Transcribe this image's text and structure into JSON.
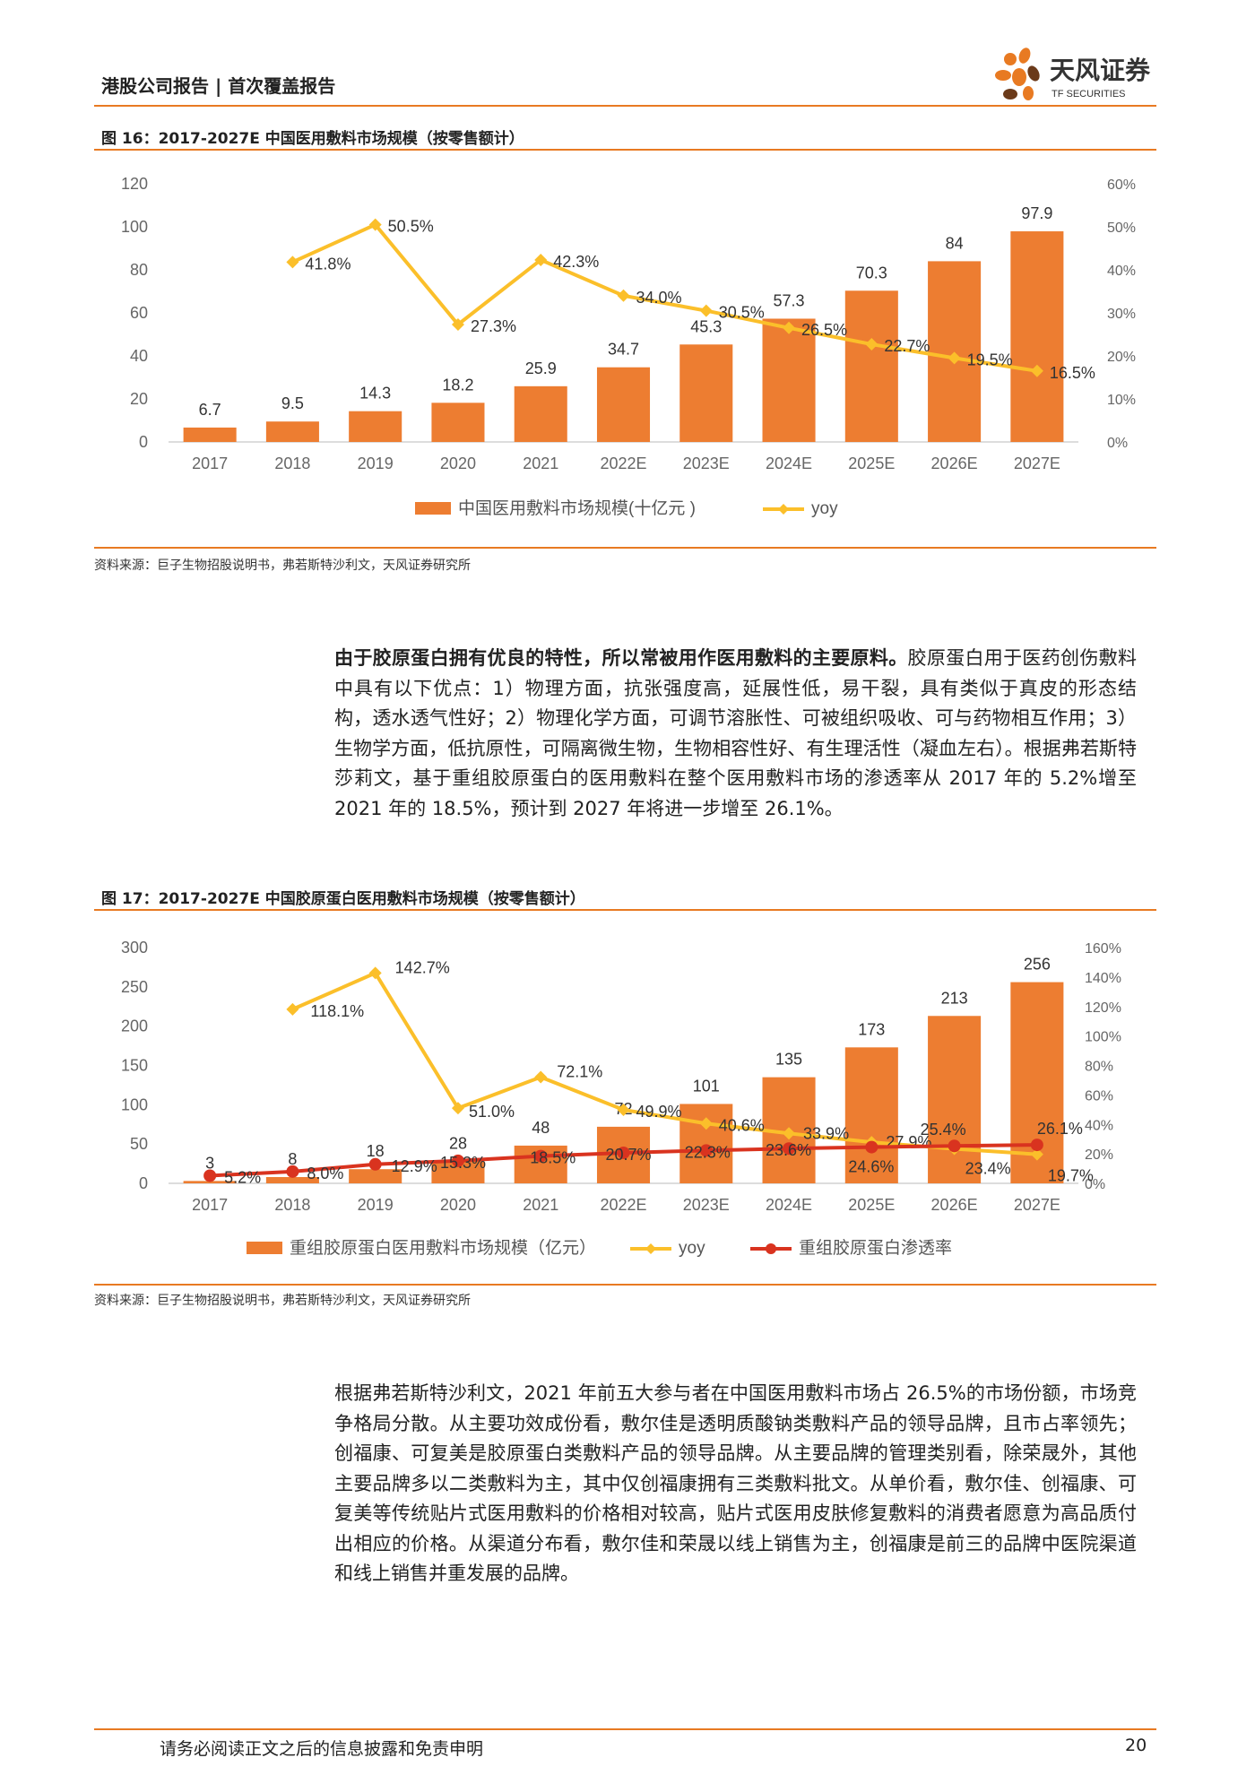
{
  "header": {
    "title": "港股公司报告 | 首次覆盖报告",
    "logo_text": "天风证券",
    "logo_sub": "TF SECURITIES"
  },
  "figure16": {
    "title": "图 16：2017-2027E 中国医用敷料市场规模（按零售额计）",
    "source": "资料来源：巨子生物招股说明书，弗若斯特沙利文，天风证券研究所"
  },
  "figure17": {
    "title": "图 17：2017-2027E 中国胶原蛋白医用敷料市场规模（按零售额计）",
    "source": "资料来源：巨子生物招股说明书，弗若斯特沙利文，天风证券研究所"
  },
  "paragraph1": {
    "bold": "由于胶原蛋白拥有优良的特性，所以常被用作医用敷料的主要原料。",
    "text": "胶原蛋白用于医药创伤敷料中具有以下优点：1）物理方面，抗张强度高，延展性低，易干裂，具有类似于真皮的形态结构，透水透气性好；2）物理化学方面，可调节溶胀性、可被组织吸收、可与药物相互作用；3）生物学方面，低抗原性，可隔离微生物，生物相容性好、有生理活性（凝血左右）。根据弗若斯特莎莉文，基于重组胶原蛋白的医用敷料在整个医用敷料市场的渗透率从 2017 年的 5.2%增至 2021 年的 18.5%，预计到 2027 年将进一步增至 26.1%。"
  },
  "paragraph2": {
    "text": "根据弗若斯特沙利文，2021 年前五大参与者在中国医用敷料市场占 26.5%的市场份额，市场竞争格局分散。从主要功效成份看，敷尔佳是透明质酸钠类敷料产品的领导品牌，且市占率领先；创福康、可复美是胶原蛋白类敷料产品的领导品牌。从主要品牌的管理类别看，除荣晟外，其他主要品牌多以二类敷料为主，其中仅创福康拥有三类敷料批文。从单价看，敷尔佳、创福康、可复美等传统贴片式医用敷料的价格相对较高，贴片式医用皮肤修复敷料的消费者愿意为高品质付出相应的价格。从渠道分布看，敷尔佳和荣晟以线上销售为主，创福康是前三的品牌中医院渠道和线上销售并重发展的品牌。"
  },
  "footer": {
    "disclaimer": "请务必阅读正文之后的信息披露和免责申明",
    "page": "20"
  },
  "colors": {
    "accent": "#e87a22",
    "bar": "#ed7d31",
    "yoy": "#fbbf2a",
    "penetration": "#d9331f"
  },
  "chart_data": [
    {
      "type": "bar",
      "categories": [
        "2017",
        "2018",
        "2019",
        "2020",
        "2021",
        "2022E",
        "2023E",
        "2024E",
        "2025E",
        "2026E",
        "2027E"
      ],
      "series": [
        {
          "name": "中国医用敷料市场规模(十亿元 )",
          "type": "bar",
          "axis": "left",
          "values": [
            6.7,
            9.5,
            14.3,
            18.2,
            25.9,
            34.7,
            45.3,
            57.3,
            70.3,
            84,
            97.9
          ],
          "labels": [
            "6.7",
            "9.5",
            "14.3",
            "18.2",
            "25.9",
            "34.7",
            "45.3",
            "57.3",
            "70.3",
            "84",
            "97.9"
          ]
        },
        {
          "name": "yoy",
          "type": "line",
          "axis": "right",
          "values": [
            null,
            41.8,
            50.5,
            27.3,
            42.3,
            34.0,
            30.5,
            26.5,
            22.7,
            19.5,
            16.5
          ],
          "labels": [
            "",
            "41.8%",
            "50.5%",
            "27.3%",
            "42.3%",
            "34.0%",
            "30.5%",
            "26.5%",
            "22.7%",
            "19.5%",
            "16.5%"
          ]
        }
      ],
      "ylim": [
        0,
        120
      ],
      "yticks": [
        "0",
        "20",
        "40",
        "60",
        "80",
        "100",
        "120"
      ],
      "y2lim": [
        0,
        60
      ],
      "y2ticks": [
        "0%",
        "10%",
        "20%",
        "30%",
        "40%",
        "50%",
        "60%"
      ],
      "legend_position": "bottom"
    },
    {
      "type": "bar",
      "categories": [
        "2017",
        "2018",
        "2019",
        "2020",
        "2021",
        "2022E",
        "2023E",
        "2024E",
        "2025E",
        "2026E",
        "2027E"
      ],
      "series": [
        {
          "name": "重组胶原蛋白医用敷料市场规模（亿元）",
          "type": "bar",
          "axis": "left",
          "values": [
            3,
            8,
            18,
            28,
            48,
            72,
            101,
            135,
            173,
            213,
            256
          ],
          "labels": [
            "3",
            "8",
            "18",
            "28",
            "48",
            "72",
            "101",
            "135",
            "173",
            "213",
            "256"
          ]
        },
        {
          "name": "yoy",
          "type": "line",
          "axis": "right",
          "values": [
            null,
            118.1,
            142.7,
            51.0,
            72.1,
            49.9,
            40.6,
            33.9,
            27.9,
            23.4,
            19.7
          ],
          "labels": [
            "",
            "118.1%",
            "142.7%",
            "51.0%",
            "72.1%",
            "49.9%",
            "40.6%",
            "33.9%",
            "27.9%",
            "23.4%",
            "19.7%"
          ]
        },
        {
          "name": "重组胶原蛋白渗透率",
          "type": "line",
          "axis": "right",
          "values": [
            5.2,
            8.0,
            12.9,
            15.3,
            18.5,
            20.7,
            22.3,
            23.6,
            24.6,
            25.4,
            26.1
          ],
          "labels": [
            "5.2%",
            "8.0%",
            "12.9%",
            "15.3%",
            "18.5%",
            "20.7%",
            "22.3%",
            "23.6%",
            "24.6%",
            "25.4%",
            "26.1%"
          ]
        }
      ],
      "ylim": [
        0,
        300
      ],
      "yticks": [
        "0",
        "50",
        "100",
        "150",
        "200",
        "250",
        "300"
      ],
      "y2lim": [
        0,
        160
      ],
      "y2ticks": [
        "0%",
        "20%",
        "40%",
        "60%",
        "80%",
        "100%",
        "120%",
        "140%",
        "160%"
      ],
      "legend_position": "bottom"
    }
  ]
}
